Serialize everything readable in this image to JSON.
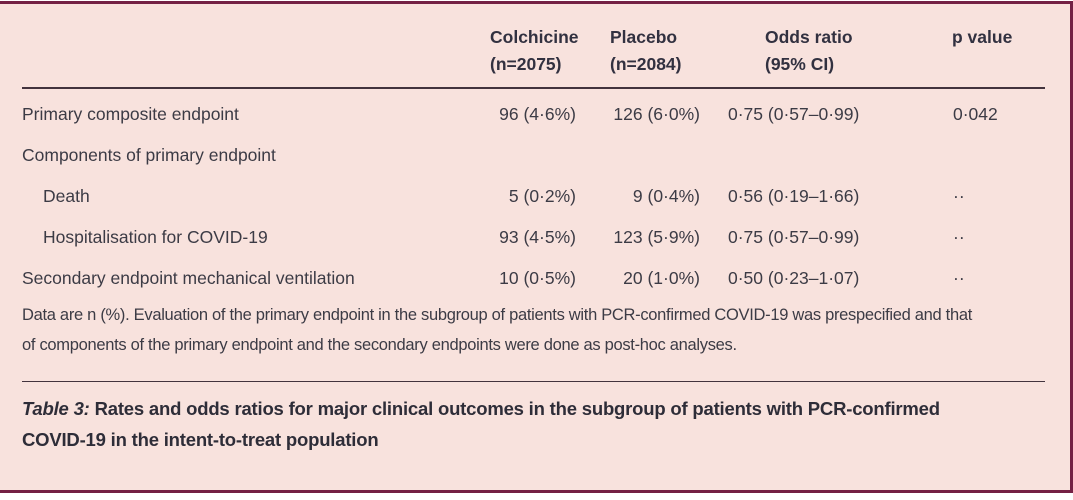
{
  "colors": {
    "panel_background": "#f8e2dd",
    "frame_border": "#742044",
    "rule": "#43333d",
    "body_text": "#3c3b45",
    "header_text": "#323140"
  },
  "table": {
    "header": {
      "colchicine_line1": "Colchicine",
      "colchicine_line2": "(n=2075)",
      "placebo_line1": "Placebo",
      "placebo_line2": "(n=2084)",
      "odds_line1": "Odds ratio",
      "odds_line2": "(95% CI)",
      "p_value": "p value"
    },
    "rows": [
      {
        "label": "Primary composite endpoint",
        "indent": false,
        "colchicine": "96 (4·6%)",
        "placebo": "126 (6·0%)",
        "odds_ratio": "0·75 (0·57–0·99)",
        "p_value": "0·042"
      },
      {
        "label": "Components of primary endpoint",
        "indent": false,
        "colchicine": "",
        "placebo": "",
        "odds_ratio": "",
        "p_value": ""
      },
      {
        "label": "Death",
        "indent": true,
        "colchicine": "5 (0·2%)",
        "placebo": "9 (0·4%)",
        "odds_ratio": "0·56 (0·19–1·66)",
        "p_value": "··"
      },
      {
        "label": "Hospitalisation for COVID-19",
        "indent": true,
        "colchicine": "93 (4·5%)",
        "placebo": "123 (5·9%)",
        "odds_ratio": "0·75 (0·57–0·99)",
        "p_value": "··"
      },
      {
        "label": "Secondary endpoint mechanical ventilation",
        "indent": false,
        "colchicine": "10 (0·5%)",
        "placebo": "20 (1·0%)",
        "odds_ratio": "0·50 (0·23–1·07)",
        "p_value": "··"
      }
    ],
    "footnote": "Data are n (%). Evaluation of the primary endpoint in the subgroup of patients with PCR-confirmed COVID-19 was prespecified and that of components of the primary endpoint and the secondary endpoints were done as post-hoc analyses.",
    "caption_label": "Table 3:",
    "caption_text": "Rates and odds ratios for major clinical outcomes in the subgroup of patients with PCR-confirmed COVID-19 in the intent-to-treat population"
  }
}
